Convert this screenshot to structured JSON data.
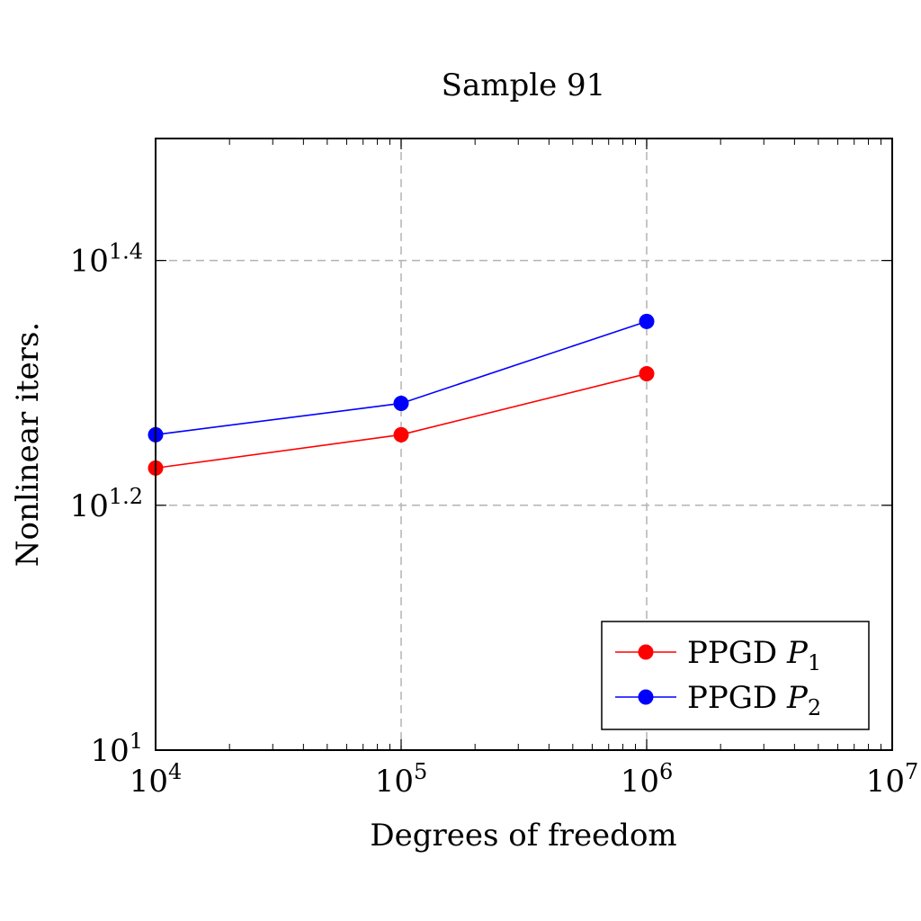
{
  "chart_data": {
    "type": "line",
    "title": "Sample 91",
    "xlabel": "Degrees of freedom",
    "ylabel": "Nonlinear iters.",
    "x_scale": "log",
    "y_scale": "log",
    "xlim": [
      10000,
      10000000
    ],
    "ylim": [
      10,
      31.6
    ],
    "x_ticks": [
      {
        "value": 10000,
        "base": "10",
        "exp": "4"
      },
      {
        "value": 100000,
        "base": "10",
        "exp": "5"
      },
      {
        "value": 1000000,
        "base": "10",
        "exp": "6"
      },
      {
        "value": 10000000,
        "base": "10",
        "exp": "7"
      }
    ],
    "y_ticks": [
      {
        "value": 10,
        "base": "10",
        "exp": "1"
      },
      {
        "value": 15.85,
        "base": "10",
        "exp": "1.2"
      },
      {
        "value": 25.12,
        "base": "10",
        "exp": "1.4"
      }
    ],
    "grid": true,
    "legend_position": "bottom-right",
    "series": [
      {
        "name": "PPGD ",
        "name_math": "P",
        "name_sub": "1",
        "color": "#ff0000",
        "x": [
          10000,
          100000,
          1000000
        ],
        "y": [
          17.0,
          18.1,
          20.3
        ]
      },
      {
        "name": "PPGD ",
        "name_math": "P",
        "name_sub": "2",
        "color": "#0000ff",
        "x": [
          10000,
          100000,
          1000000
        ],
        "y": [
          18.1,
          19.2,
          22.4
        ]
      }
    ]
  }
}
